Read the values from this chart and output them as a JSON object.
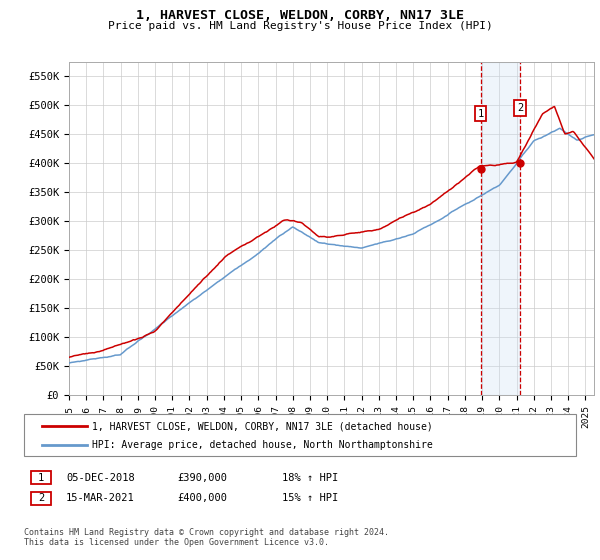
{
  "title": "1, HARVEST CLOSE, WELDON, CORBY, NN17 3LE",
  "subtitle": "Price paid vs. HM Land Registry's House Price Index (HPI)",
  "ylabel_ticks": [
    "£0",
    "£50K",
    "£100K",
    "£150K",
    "£200K",
    "£250K",
    "£300K",
    "£350K",
    "£400K",
    "£450K",
    "£500K",
    "£550K"
  ],
  "ytick_values": [
    0,
    50000,
    100000,
    150000,
    200000,
    250000,
    300000,
    350000,
    400000,
    450000,
    500000,
    550000
  ],
  "ylim": [
    0,
    575000
  ],
  "xlim_start": 1995.0,
  "xlim_end": 2025.5,
  "sale1_x": 2018.92,
  "sale1_y": 390000,
  "sale2_x": 2021.21,
  "sale2_y": 400000,
  "line_color_red": "#cc0000",
  "line_color_blue": "#6699cc",
  "shade_color": "#cce0f5",
  "dashed_color": "#cc0000",
  "legend_label_red": "1, HARVEST CLOSE, WELDON, CORBY, NN17 3LE (detached house)",
  "legend_label_blue": "HPI: Average price, detached house, North Northamptonshire",
  "table_rows": [
    {
      "num": "1",
      "date": "05-DEC-2018",
      "price": "£390,000",
      "hpi": "18% ↑ HPI"
    },
    {
      "num": "2",
      "date": "15-MAR-2021",
      "price": "£400,000",
      "hpi": "15% ↑ HPI"
    }
  ],
  "footnote": "Contains HM Land Registry data © Crown copyright and database right 2024.\nThis data is licensed under the Open Government Licence v3.0.",
  "background_color": "#ffffff",
  "grid_color": "#cccccc"
}
